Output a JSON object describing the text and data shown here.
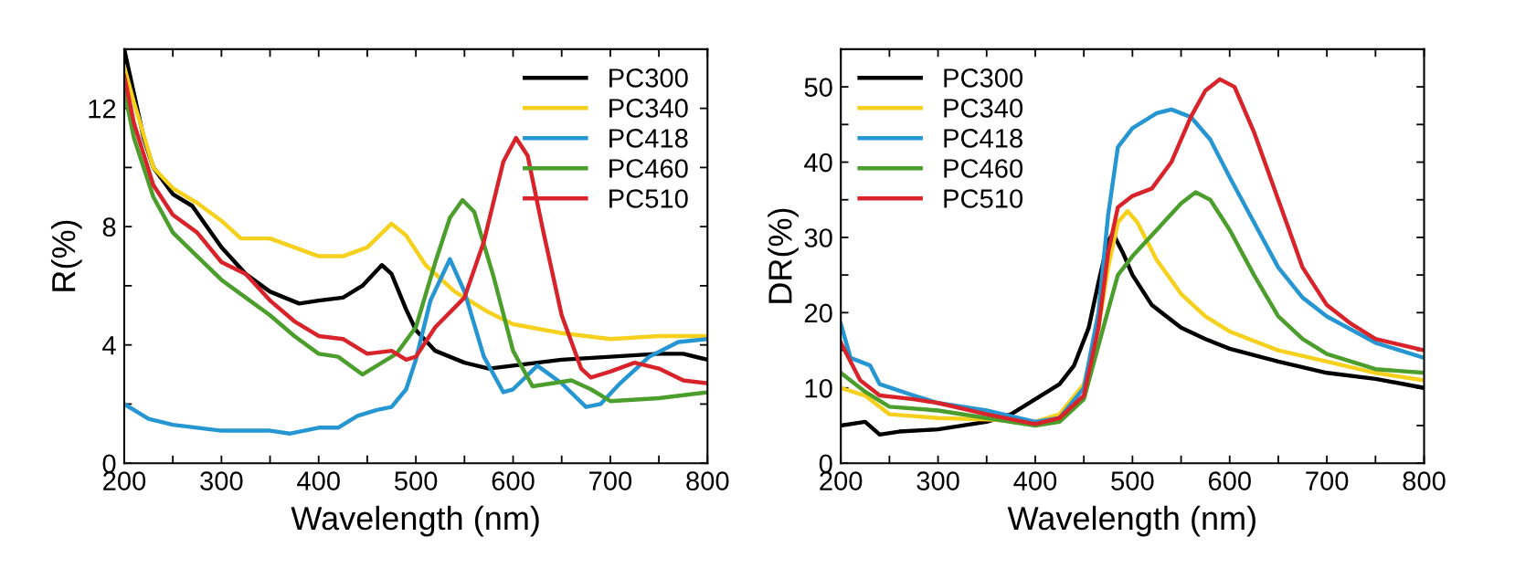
{
  "chart_data": [
    {
      "type": "line",
      "xlabel": "Wavelength (nm)",
      "ylabel": "R(%)",
      "xlim": [
        200,
        800
      ],
      "ylim": [
        0,
        14
      ],
      "xticks": [
        200,
        {
          "value": 250,
          "label": null
        },
        300,
        {
          "value": 350,
          "label": null
        },
        400,
        {
          "value": 450,
          "label": null
        },
        500,
        {
          "value": 550,
          "label": null
        },
        600,
        {
          "value": 650,
          "label": null
        },
        700,
        {
          "value": 750,
          "label": null
        },
        800
      ],
      "yticks": [
        0,
        {
          "value": 2,
          "label": null
        },
        4,
        {
          "value": 6,
          "label": null
        },
        8,
        {
          "value": 10,
          "label": null
        },
        12
      ],
      "legend": "top right",
      "grid": false,
      "marker": "none",
      "line_style": "solid",
      "series": [
        {
          "name": "PC300",
          "color": "#000000",
          "x": [
            200,
            210,
            220,
            230,
            250,
            270,
            300,
            325,
            350,
            380,
            400,
            425,
            445,
            465,
            475,
            490,
            500,
            520,
            550,
            575,
            600,
            650,
            700,
            750,
            775,
            800
          ],
          "values": [
            14,
            12.5,
            11,
            10,
            9.1,
            8.7,
            7.3,
            6.4,
            5.8,
            5.4,
            5.5,
            5.6,
            6.0,
            6.7,
            6.4,
            5.2,
            4.5,
            3.8,
            3.4,
            3.2,
            3.3,
            3.5,
            3.6,
            3.7,
            3.7,
            3.5
          ]
        },
        {
          "name": "PC340",
          "color": "#f5d01c",
          "x": [
            200,
            210,
            230,
            250,
            275,
            300,
            320,
            350,
            375,
            400,
            425,
            450,
            475,
            490,
            510,
            540,
            575,
            600,
            650,
            700,
            750,
            800
          ],
          "values": [
            13.4,
            12.2,
            10,
            9.3,
            8.8,
            8.2,
            7.6,
            7.6,
            7.3,
            7.0,
            7.0,
            7.3,
            8.1,
            7.7,
            6.7,
            5.8,
            5.1,
            4.7,
            4.4,
            4.2,
            4.3,
            4.3
          ]
        },
        {
          "name": "PC418",
          "color": "#2596d1",
          "x": [
            200,
            225,
            250,
            300,
            350,
            370,
            400,
            420,
            440,
            460,
            475,
            490,
            500,
            515,
            535,
            550,
            570,
            590,
            600,
            625,
            650,
            675,
            690,
            710,
            740,
            770,
            800
          ],
          "values": [
            2.0,
            1.5,
            1.3,
            1.1,
            1.1,
            1.0,
            1.2,
            1.2,
            1.6,
            1.8,
            1.9,
            2.5,
            3.5,
            5.5,
            6.9,
            5.8,
            3.6,
            2.4,
            2.5,
            3.3,
            2.7,
            1.9,
            2.0,
            2.7,
            3.6,
            4.1,
            4.2
          ]
        },
        {
          "name": "PC460",
          "color": "#4b9e2c",
          "x": [
            200,
            210,
            230,
            250,
            275,
            300,
            325,
            350,
            375,
            400,
            420,
            445,
            460,
            480,
            500,
            520,
            535,
            548,
            560,
            580,
            600,
            620,
            640,
            660,
            680,
            700,
            750,
            800
          ],
          "values": [
            12.6,
            11.0,
            9.0,
            7.8,
            7.0,
            6.2,
            5.6,
            5.0,
            4.3,
            3.7,
            3.6,
            3.0,
            3.3,
            3.7,
            4.6,
            6.8,
            8.3,
            8.9,
            8.5,
            6.3,
            3.8,
            2.6,
            2.7,
            2.8,
            2.5,
            2.1,
            2.2,
            2.4
          ]
        },
        {
          "name": "PC510",
          "color": "#d8232a",
          "x": [
            200,
            210,
            230,
            250,
            275,
            300,
            325,
            350,
            375,
            400,
            425,
            450,
            475,
            490,
            500,
            520,
            550,
            570,
            590,
            603,
            615,
            630,
            650,
            670,
            680,
            700,
            725,
            750,
            775,
            800
          ],
          "values": [
            13.1,
            11.5,
            9.4,
            8.4,
            7.8,
            6.8,
            6.4,
            5.5,
            4.8,
            4.3,
            4.2,
            3.7,
            3.8,
            3.5,
            3.6,
            4.6,
            5.6,
            7.5,
            10.2,
            11.0,
            10.4,
            8.0,
            5.0,
            3.2,
            2.9,
            3.1,
            3.4,
            3.2,
            2.8,
            2.7
          ]
        }
      ]
    },
    {
      "type": "line",
      "xlabel": "Wavelength (nm)",
      "ylabel": "DR(%)",
      "xlim": [
        200,
        800
      ],
      "ylim": [
        0,
        55
      ],
      "xticks": [
        200,
        {
          "value": 250,
          "label": null
        },
        300,
        {
          "value": 350,
          "label": null
        },
        400,
        {
          "value": 450,
          "label": null
        },
        500,
        {
          "value": 550,
          "label": null
        },
        600,
        {
          "value": 650,
          "label": null
        },
        700,
        {
          "value": 750,
          "label": null
        },
        800
      ],
      "yticks": [
        0,
        {
          "value": 5,
          "label": null
        },
        10,
        {
          "value": 15,
          "label": null
        },
        20,
        {
          "value": 25,
          "label": null
        },
        30,
        {
          "value": 35,
          "label": null
        },
        40,
        {
          "value": 45,
          "label": null
        },
        50
      ],
      "legend": "top left",
      "grid": false,
      "marker": "none",
      "line_style": "solid",
      "series": [
        {
          "name": "PC300",
          "color": "#000000",
          "x": [
            200,
            225,
            240,
            260,
            300,
            350,
            375,
            400,
            425,
            440,
            455,
            465,
            475,
            480,
            490,
            500,
            520,
            550,
            575,
            600,
            650,
            700,
            750,
            800
          ],
          "values": [
            5,
            5.5,
            3.8,
            4.2,
            4.5,
            5.5,
            6.5,
            8.5,
            10.5,
            13,
            18,
            24,
            29.5,
            30.5,
            28,
            25,
            21,
            18,
            16.5,
            15.2,
            13.5,
            12,
            11.2,
            10
          ]
        },
        {
          "name": "PC340",
          "color": "#f5d01c",
          "x": [
            200,
            225,
            250,
            300,
            350,
            400,
            425,
            450,
            465,
            475,
            485,
            495,
            505,
            525,
            550,
            575,
            600,
            650,
            700,
            750,
            800
          ],
          "values": [
            10,
            9,
            6.5,
            6,
            5.8,
            5.5,
            6.5,
            10.5,
            18,
            26,
            32,
            33.5,
            32,
            27,
            22.5,
            19.5,
            17.5,
            15,
            13.5,
            12,
            11
          ]
        },
        {
          "name": "PC418",
          "color": "#2596d1",
          "x": [
            200,
            210,
            230,
            240,
            275,
            300,
            350,
            400,
            425,
            450,
            465,
            475,
            485,
            500,
            525,
            540,
            560,
            580,
            600,
            625,
            650,
            675,
            700,
            750,
            800
          ],
          "values": [
            18.5,
            14,
            13,
            10.5,
            9,
            8,
            7,
            5.5,
            6,
            10,
            20,
            33,
            42,
            44.5,
            46.5,
            47,
            46,
            43,
            38,
            32,
            26,
            22,
            19.5,
            16,
            14
          ]
        },
        {
          "name": "PC460",
          "color": "#4b9e2c",
          "x": [
            200,
            225,
            250,
            300,
            350,
            400,
            425,
            450,
            470,
            485,
            500,
            525,
            550,
            565,
            580,
            600,
            625,
            650,
            675,
            700,
            750,
            800
          ],
          "values": [
            12,
            9.5,
            7.5,
            7,
            6,
            5,
            5.5,
            8.5,
            18,
            25,
            27.5,
            31,
            34.5,
            36,
            35,
            31,
            25,
            19.5,
            16.5,
            14.5,
            12.5,
            12
          ]
        },
        {
          "name": "PC510",
          "color": "#d8232a",
          "x": [
            200,
            220,
            240,
            275,
            300,
            350,
            400,
            425,
            450,
            465,
            475,
            485,
            500,
            520,
            540,
            560,
            575,
            590,
            605,
            625,
            650,
            675,
            700,
            725,
            750,
            800
          ],
          "values": [
            16,
            11,
            9,
            8.5,
            8,
            6.5,
            5.2,
            6,
            9,
            18,
            28,
            34,
            35.5,
            36.5,
            40,
            46,
            49.5,
            51,
            50,
            44,
            35,
            26,
            21,
            18.5,
            16.5,
            15
          ]
        }
      ]
    }
  ]
}
